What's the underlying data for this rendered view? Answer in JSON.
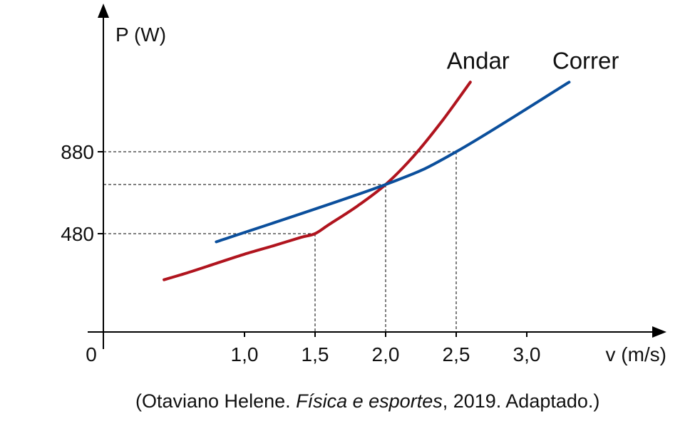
{
  "chart_data": {
    "type": "line",
    "xlabel": "v (m/s)",
    "ylabel": "P (W)",
    "origin_label": "0",
    "xlim": [
      0,
      3.85
    ],
    "ylim": [
      0,
      1540
    ],
    "x_ticks": [
      {
        "value": 1.0,
        "label": "1,0"
      },
      {
        "value": 1.5,
        "label": "1,5"
      },
      {
        "value": 2.0,
        "label": "2,0"
      },
      {
        "value": 2.5,
        "label": "2,5"
      },
      {
        "value": 3.0,
        "label": "3,0"
      }
    ],
    "y_ticks": [
      {
        "value": 480,
        "label": "480"
      },
      {
        "value": 880,
        "label": "880"
      }
    ],
    "series": [
      {
        "name": "Andar",
        "color": "#b0141e",
        "x": [
          0.43,
          0.6,
          0.8,
          1.0,
          1.2,
          1.4,
          1.5,
          1.6,
          1.8,
          2.0,
          2.2,
          2.4,
          2.6
        ],
        "y": [
          255,
          290,
          335,
          380,
          420,
          462,
          480,
          525,
          615,
          720,
          860,
          1030,
          1220
        ]
      },
      {
        "name": "Correr",
        "color": "#0b4f9c",
        "x": [
          0.8,
          2.0,
          2.5,
          3.3
        ],
        "y": [
          440,
          720,
          880,
          1220
        ]
      }
    ],
    "reference_lines": [
      {
        "x": 1.5,
        "y": 480
      },
      {
        "x": 2.0,
        "y": 720
      },
      {
        "x": 2.5,
        "y": 880
      }
    ]
  },
  "source": {
    "prefix": "(Otaviano Helene. ",
    "title": "Física e esportes",
    "suffix": ", 2019. Adaptado.)"
  }
}
